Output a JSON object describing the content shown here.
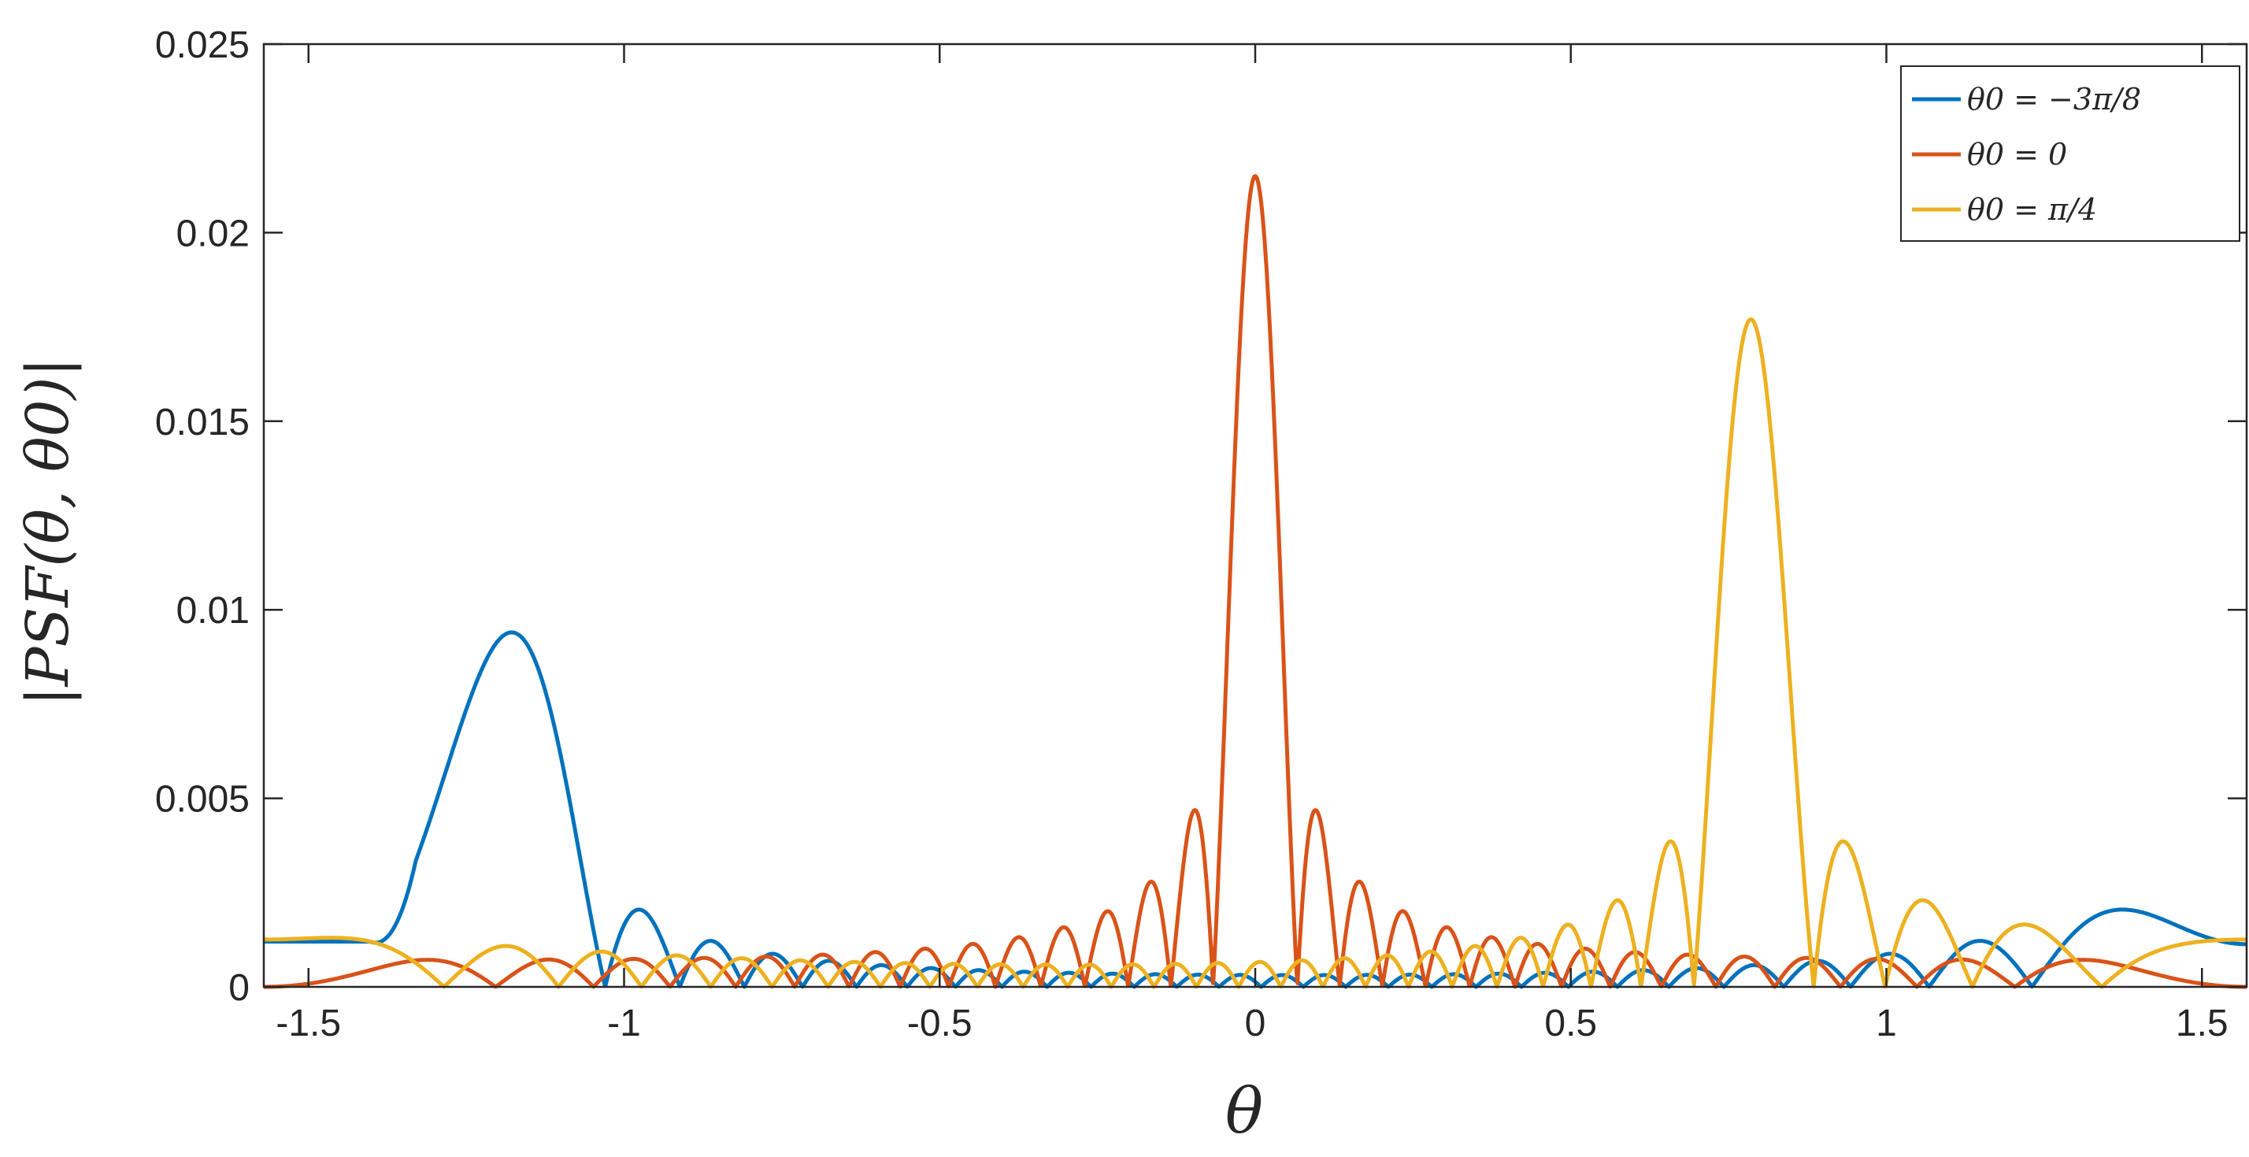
{
  "chart_data": {
    "type": "line",
    "title": "",
    "xlabel": "θ",
    "ylabel": "|PSF(θ, θ0)|",
    "xlim": [
      -1.5708,
      1.5708
    ],
    "ylim": [
      0,
      0.025
    ],
    "x_ticks": [
      -1.5,
      -1,
      -0.5,
      0,
      0.5,
      1,
      1.5
    ],
    "x_tick_labels": [
      "-1.5",
      "-1",
      "-0.5",
      "0",
      "0.5",
      "1",
      "1.5"
    ],
    "y_ticks": [
      0,
      0.005,
      0.01,
      0.015,
      0.02,
      0.025
    ],
    "y_tick_labels": [
      "0",
      "0.005",
      "0.01",
      "0.015",
      "0.02",
      "0.025"
    ],
    "grid": false,
    "box": true,
    "legend_position": "top-right",
    "series": [
      {
        "name": "θ0 = −3π/8",
        "color": "#0072BD",
        "theta0": -1.1781,
        "peak": 0.0094,
        "sidelobes_to_right": [
          0.0026,
          0.0017,
          0.00135,
          0.00112,
          0.00098,
          0.00088,
          0.0008,
          0.00074,
          0.00068
        ],
        "plateau_left": [
          -1.5708,
          -1.33,
          0.0012
        ]
      },
      {
        "name": "θ0 = 0",
        "color": "#D95319",
        "theta0": 0,
        "peak": 0.0215,
        "first_sidelobes": [
          0.0047,
          0.0045
        ],
        "edge_value": 0.0008
      },
      {
        "name": "θ0 = π/4",
        "color": "#EDB120",
        "theta0": 0.7854,
        "peak": 0.0177,
        "first_sidelobes": [
          0.0042,
          0.0034
        ],
        "edge_value": 0.00035
      }
    ]
  }
}
